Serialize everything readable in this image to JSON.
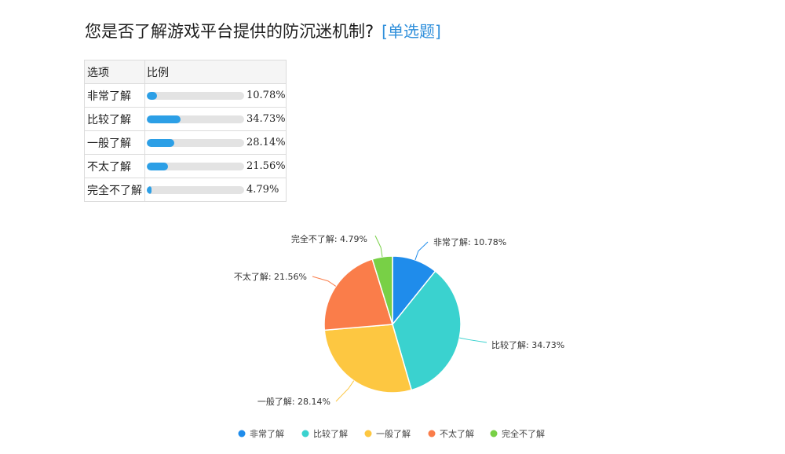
{
  "question": {
    "title": "您是否了解游戏平台提供的防沉迷机制?",
    "type_label": "[单选题]"
  },
  "table": {
    "header_option": "选项",
    "header_ratio": "比例",
    "rows": [
      {
        "label": "非常了解",
        "percent_text": "10.78%",
        "percent": 10.78
      },
      {
        "label": "比较了解",
        "percent_text": "34.73%",
        "percent": 34.73
      },
      {
        "label": "一般了解",
        "percent_text": "28.14%",
        "percent": 28.14
      },
      {
        "label": "不太了解",
        "percent_text": "21.56%",
        "percent": 21.56
      },
      {
        "label": "完全不了解",
        "percent_text": "4.79%",
        "percent": 4.79
      }
    ]
  },
  "chart_data": {
    "type": "pie",
    "title": "",
    "start_angle_deg": 0,
    "direction": "clockwise",
    "legend_position": "bottom",
    "slices": [
      {
        "label": "非常了解",
        "value": 10.78,
        "display": "非常了解: 10.78%",
        "color": "#1f8ceb"
      },
      {
        "label": "比较了解",
        "value": 34.73,
        "display": "比较了解: 34.73%",
        "color": "#3ad2cf"
      },
      {
        "label": "一般了解",
        "value": 28.14,
        "display": "一般了解: 28.14%",
        "color": "#fdc741"
      },
      {
        "label": "不太了解",
        "value": 21.56,
        "display": "不太了解: 21.56%",
        "color": "#fa7d4a"
      },
      {
        "label": "完全不了解",
        "value": 4.79,
        "display": "完全不了解: 4.79%",
        "color": "#78d046"
      }
    ]
  }
}
